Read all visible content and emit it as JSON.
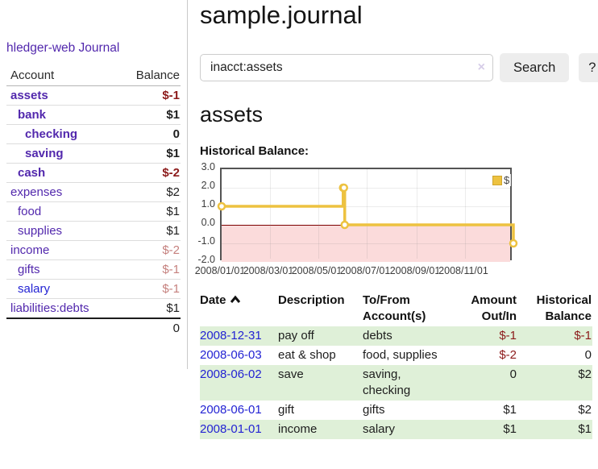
{
  "app": {
    "brand": "hledger-web"
  },
  "sidebar": {
    "nav": {
      "journal": "Journal"
    },
    "accounts_table": {
      "headers": {
        "account": "Account",
        "balance": "Balance"
      },
      "rows": [
        {
          "name": "assets",
          "balance": "$-1"
        },
        {
          "name": "bank",
          "balance": "$1"
        },
        {
          "name": "checking",
          "balance": "0"
        },
        {
          "name": "saving",
          "balance": "$1"
        },
        {
          "name": "cash",
          "balance": "$-2"
        },
        {
          "name": "expenses",
          "balance": "$2"
        },
        {
          "name": "food",
          "balance": "$1"
        },
        {
          "name": "supplies",
          "balance": "$1"
        },
        {
          "name": "income",
          "balance": "$-2"
        },
        {
          "name": "gifts",
          "balance": "$-1"
        },
        {
          "name": "salary",
          "balance": "$-1"
        },
        {
          "name": "liabilities:debts",
          "balance": "$1"
        }
      ],
      "total": "0"
    }
  },
  "header": {
    "title": "sample.journal"
  },
  "search": {
    "value": "inacct:assets",
    "clear_icon": "×",
    "search_button": "Search",
    "help_button": "?"
  },
  "account_page": {
    "heading": "assets",
    "chart_label": "Historical Balance:"
  },
  "chart_data": {
    "type": "line",
    "title": "Historical Balance",
    "step": true,
    "series": [
      {
        "name": "$",
        "points": [
          [
            "2008-01-01",
            1
          ],
          [
            "2008-06-01",
            2
          ],
          [
            "2008-06-02",
            2
          ],
          [
            "2008-06-03",
            0
          ],
          [
            "2008-12-31",
            -1
          ]
        ]
      }
    ],
    "xlim": [
      "2008-01-01",
      "2008-12-31"
    ],
    "ylim": [
      -2,
      3
    ],
    "y_ticks": [
      "3.0",
      "2.0",
      "1.0",
      "0.0",
      "-1.0",
      "-2.0"
    ],
    "x_ticks": [
      "2008/01/01",
      "2008/03/01",
      "2008/05/01",
      "2008/07/01",
      "2008/09/01",
      "2008/11/01"
    ],
    "grid": true,
    "legend_position": "top-right",
    "legend_label": "$",
    "negative_region_below": 0,
    "colors": {
      "series": "#edc240",
      "negative_fill": "#fbdbdb",
      "zero_line": "#7d0000"
    }
  },
  "register_table": {
    "headers": {
      "date": "Date",
      "description": "Description",
      "accounts_line1": "To/From",
      "accounts_line2": "Account(s)",
      "amount_line1": "Amount",
      "amount_line2": "Out/In",
      "balance_line1": "Historical",
      "balance_line2": "Balance"
    },
    "rows": [
      {
        "date": "2008-12-31",
        "description": "pay off",
        "accounts": "debts",
        "amount": "$-1",
        "balance": "$-1"
      },
      {
        "date": "2008-06-03",
        "description": "eat & shop",
        "accounts": "food, supplies",
        "amount": "$-2",
        "balance": "0"
      },
      {
        "date": "2008-06-02",
        "description": "save",
        "accounts": "saving, checking",
        "amount": "0",
        "balance": "$2"
      },
      {
        "date": "2008-06-01",
        "description": "gift",
        "accounts": "gifts",
        "amount": "$1",
        "balance": "$2"
      },
      {
        "date": "2008-01-01",
        "description": "income",
        "accounts": "salary",
        "amount": "$1",
        "balance": "$1"
      }
    ]
  }
}
